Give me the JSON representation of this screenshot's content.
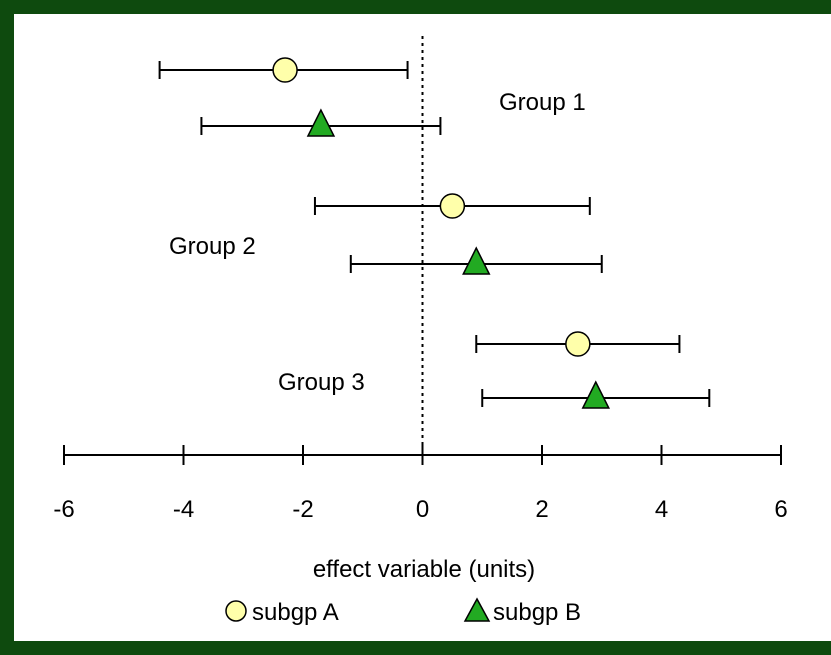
{
  "chart_data": {
    "type": "scatter",
    "title": "",
    "xlabel": "effect variable (units)",
    "ylabel": "",
    "xlim": [
      -6,
      6
    ],
    "xticks": [
      -6,
      -4,
      -2,
      0,
      2,
      4,
      6
    ],
    "reference_line": 0,
    "grid": false,
    "groups": [
      "Group 1",
      "Group 2",
      "Group 3"
    ],
    "series": [
      {
        "name": "subgp A",
        "marker": "circle",
        "color": "#ffffaa",
        "points": [
          {
            "group": "Group 1",
            "estimate": -2.3,
            "lower": -4.4,
            "upper": -0.25
          },
          {
            "group": "Group 2",
            "estimate": 0.5,
            "lower": -1.8,
            "upper": 2.8
          },
          {
            "group": "Group 3",
            "estimate": 2.6,
            "lower": 0.9,
            "upper": 4.3
          }
        ]
      },
      {
        "name": "subgp B",
        "marker": "triangle",
        "color": "#22aa22",
        "points": [
          {
            "group": "Group 1",
            "estimate": -1.7,
            "lower": -3.7,
            "upper": 0.3
          },
          {
            "group": "Group 2",
            "estimate": 0.9,
            "lower": -1.2,
            "upper": 3.0
          },
          {
            "group": "Group 3",
            "estimate": 2.9,
            "lower": 1.0,
            "upper": 4.8
          }
        ]
      }
    ],
    "legend_position": "bottom"
  },
  "colors": {
    "background_border": "#0e4a0e",
    "plot_background": "#ffffff",
    "axis": "#000000"
  }
}
